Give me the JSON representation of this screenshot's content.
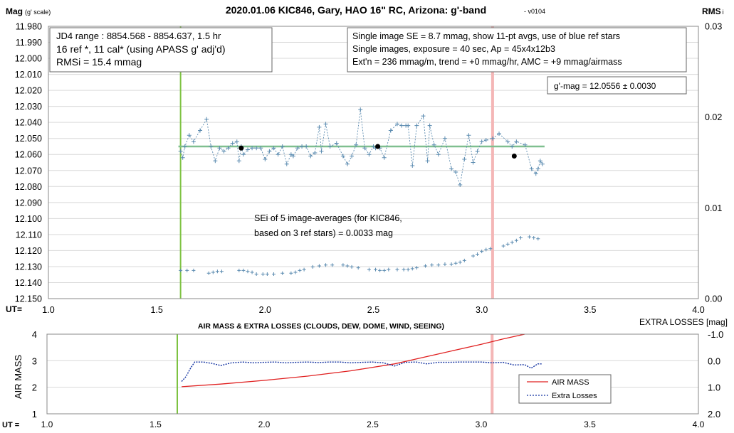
{
  "chart_data": [
    {
      "type": "scatter",
      "title": "2020.01.06 KIC846, Gary, HAO 16\" RC, Arizona: g'-band",
      "version": "- v0104",
      "ylabel_main": "Mag",
      "ylabel_sub": "(g' scale)",
      "y2label_main": "RMS",
      "y2label_sub": "i",
      "xlabel": "UT=",
      "xlim": [
        1.0,
        4.0
      ],
      "ylim": [
        11.98,
        12.15
      ],
      "y_inverted": true,
      "y2lim": [
        0.0,
        0.03
      ],
      "x_ticks": [
        "1.0",
        "1.5",
        "2.0",
        "2.5",
        "3.0",
        "3.5",
        "4.0"
      ],
      "y_ticks": [
        "11.980",
        "11.990",
        "12.000",
        "12.010",
        "12.020",
        "12.030",
        "12.040",
        "12.050",
        "12.060",
        "12.070",
        "12.080",
        "12.090",
        "12.100",
        "12.110",
        "12.120",
        "12.130",
        "12.140",
        "12.150"
      ],
      "y2_ticks": [
        "0.03",
        "0.02",
        "0.01",
        "0.00"
      ],
      "grid": true,
      "info_box_left": [
        "JD4 range : 8854.568 - 8854.637,  1.5  hr",
        "16 ref *, 11 cal* (using APASS g' adj'd)",
        "RMSi = 15.4 mmag"
      ],
      "info_box_right": [
        "Single image SE = 8.7 mmag, show  11-pt avgs, use of blue ref stars",
        "Single images, exposure = 40 sec, Ap = 45x4x12b3",
        "Ext'n = 236 mmag/m, trend =  +0 mmag/hr, AMC = +9 mmag/airmass"
      ],
      "gmag_label": "g'-mag = 12.0556 ± 0.0030",
      "sei_note": [
        "SEi of 5 image-averages (for KIC846,",
        "based on 3 ref stars) = 0.0033 mag"
      ],
      "vlines": [
        {
          "x": 1.61,
          "color": "#7dc242"
        },
        {
          "x": 3.05,
          "color": "#f4b6b6"
        }
      ],
      "fit_line": {
        "x": [
          1.6,
          3.29
        ],
        "y": 12.055,
        "color": "#7fbf8f"
      },
      "series": [
        {
          "name": "",
          "color": "#5b8bb0",
          "x": [
            1.61,
            1.62,
            1.63,
            1.65,
            1.67,
            1.7,
            1.73,
            1.75,
            1.77,
            1.79,
            1.81,
            1.83,
            1.85,
            1.87,
            1.88,
            1.89,
            1.9,
            1.92,
            1.94,
            1.96,
            1.98,
            2.0,
            2.02,
            2.04,
            2.06,
            2.08,
            2.1,
            2.12,
            2.13,
            2.15,
            2.17,
            2.19,
            2.21,
            2.23,
            2.25,
            2.26,
            2.28,
            2.3,
            2.33,
            2.36,
            2.38,
            2.4,
            2.42,
            2.44,
            2.46,
            2.48,
            2.5,
            2.51,
            2.52,
            2.53,
            2.55,
            2.58,
            2.61,
            2.63,
            2.65,
            2.66,
            2.68,
            2.7,
            2.73,
            2.75,
            2.76,
            2.78,
            2.8,
            2.83,
            2.86,
            2.88,
            2.9,
            2.92,
            2.94,
            2.96,
            2.98,
            3.0,
            3.02,
            3.05,
            3.08,
            3.12,
            3.14,
            3.16,
            3.2,
            3.23,
            3.25,
            3.26,
            3.27,
            3.28
          ],
          "y": [
            12.058,
            12.062,
            12.055,
            12.048,
            12.052,
            12.045,
            12.038,
            12.055,
            12.064,
            12.056,
            12.058,
            12.056,
            12.053,
            12.052,
            12.064,
            12.055,
            12.06,
            12.057,
            12.056,
            12.056,
            12.056,
            12.063,
            12.058,
            12.056,
            12.06,
            12.055,
            12.066,
            12.06,
            12.061,
            12.056,
            12.055,
            12.055,
            12.061,
            12.059,
            12.043,
            12.058,
            12.041,
            12.055,
            12.053,
            12.061,
            12.066,
            12.061,
            12.054,
            12.032,
            12.056,
            12.06,
            12.055,
            12.056,
            12.055,
            12.056,
            12.062,
            12.045,
            12.041,
            12.042,
            12.042,
            12.042,
            12.067,
            12.042,
            12.036,
            12.064,
            12.042,
            12.054,
            12.06,
            12.05,
            12.069,
            12.071,
            12.079,
            12.063,
            12.048,
            12.065,
            12.058,
            12.052,
            12.051,
            12.05,
            12.047,
            12.052,
            12.055,
            12.052,
            12.054,
            12.069,
            12.072,
            12.069,
            12.064,
            12.066
          ]
        },
        {
          "name": "5-image averages",
          "color": "#000000",
          "x": [
            1.89,
            2.52,
            3.15
          ],
          "y": [
            12.056,
            12.055,
            12.061
          ]
        },
        {
          "name": "RMSi",
          "color": "#5b8bb0",
          "axis": "y2",
          "x": [
            1.61,
            1.64,
            1.67,
            1.74,
            1.76,
            1.78,
            1.8,
            1.88,
            1.9,
            1.92,
            1.94,
            1.96,
            1.99,
            2.01,
            2.04,
            2.08,
            2.12,
            2.14,
            2.16,
            2.18,
            2.22,
            2.25,
            2.28,
            2.31,
            2.36,
            2.38,
            2.4,
            2.43,
            2.48,
            2.51,
            2.53,
            2.55,
            2.57,
            2.61,
            2.64,
            2.66,
            2.68,
            2.7,
            2.74,
            2.77,
            2.8,
            2.83,
            2.86,
            2.88,
            2.9,
            2.92,
            2.96,
            2.98,
            3.0,
            3.02,
            3.04,
            3.1,
            3.12,
            3.14,
            3.16,
            3.18,
            3.22,
            3.24,
            3.26
          ],
          "y": [
            0.0031,
            0.0031,
            0.0031,
            0.0028,
            0.0029,
            0.003,
            0.003,
            0.0031,
            0.0031,
            0.003,
            0.0029,
            0.0027,
            0.0027,
            0.0027,
            0.0027,
            0.0028,
            0.0028,
            0.0029,
            0.0031,
            0.0032,
            0.0035,
            0.0036,
            0.0037,
            0.0037,
            0.0037,
            0.0036,
            0.0035,
            0.0034,
            0.0032,
            0.0032,
            0.0031,
            0.0031,
            0.0032,
            0.0032,
            0.0032,
            0.0032,
            0.0033,
            0.0034,
            0.0036,
            0.0037,
            0.0037,
            0.0038,
            0.0038,
            0.0039,
            0.004,
            0.0042,
            0.0047,
            0.0049,
            0.0052,
            0.0054,
            0.0055,
            0.0058,
            0.006,
            0.0062,
            0.0064,
            0.0067,
            0.0068,
            0.0067,
            0.0066
          ]
        }
      ]
    },
    {
      "type": "line",
      "title": "AIR MASS & EXTRA LOSSES (CLOUDS, DEW, DOME, WIND, SEEING)",
      "ylabel": "AIR MASS",
      "y2label": "EXTRA LOSSES [mag]",
      "xlabel": "UT =",
      "xlim": [
        1.0,
        4.0
      ],
      "ylim": [
        1,
        4
      ],
      "y2lim": [
        -1.0,
        2.0
      ],
      "y2_inverted": true,
      "x_ticks": [
        "1.0",
        "1.5",
        "2.0",
        "2.5",
        "3.0",
        "3.5",
        "4.0"
      ],
      "y_ticks": [
        "4",
        "3",
        "2",
        "1"
      ],
      "y2_ticks": [
        "-1.0",
        "0.0",
        "1.0",
        "2.0"
      ],
      "vlines": [
        {
          "x": 1.6,
          "color": "#7dc242"
        },
        {
          "x": 3.05,
          "color": "#f4b6b6"
        }
      ],
      "legend": "inside-bottom-right",
      "series": [
        {
          "name": "AIR MASS",
          "color": "#e02020",
          "axis": "y",
          "x": [
            1.62,
            1.8,
            2.0,
            2.2,
            2.4,
            2.6,
            2.8,
            3.0,
            3.1,
            3.2
          ],
          "y": [
            2.02,
            2.12,
            2.26,
            2.42,
            2.62,
            2.88,
            3.25,
            3.62,
            3.82,
            4.05
          ]
        },
        {
          "name": "Extra Losses",
          "color": "#1030a0",
          "axis": "y2",
          "x": [
            1.62,
            1.64,
            1.66,
            1.68,
            1.72,
            1.76,
            1.8,
            1.85,
            1.9,
            1.95,
            2.0,
            2.05,
            2.1,
            2.15,
            2.2,
            2.25,
            2.3,
            2.35,
            2.4,
            2.45,
            2.5,
            2.55,
            2.6,
            2.65,
            2.7,
            2.75,
            2.8,
            2.85,
            2.9,
            2.95,
            3.0,
            3.05,
            3.1,
            3.15,
            3.2,
            3.23,
            3.26,
            3.28
          ],
          "y": [
            0.78,
            0.6,
            0.3,
            0.05,
            0.05,
            0.1,
            0.18,
            0.08,
            0.05,
            0.08,
            0.06,
            0.05,
            0.08,
            0.06,
            0.05,
            0.07,
            0.05,
            0.05,
            0.08,
            0.06,
            0.05,
            0.08,
            0.2,
            0.06,
            0.05,
            0.12,
            0.06,
            0.06,
            0.05,
            0.05,
            0.05,
            0.08,
            0.06,
            0.16,
            0.15,
            0.28,
            0.12,
            0.12
          ]
        }
      ]
    }
  ]
}
